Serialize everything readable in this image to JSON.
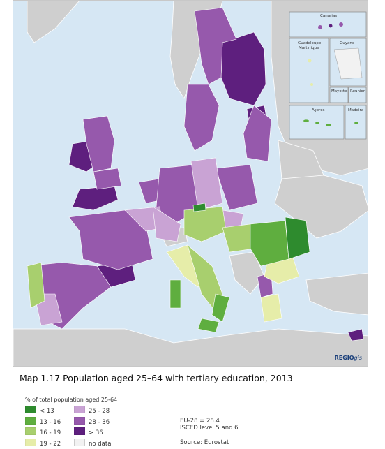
{
  "inset_labels": {
    "canarias": "Canarias",
    "guadeloupe": "Guadeloupe",
    "martinique": "Martinique",
    "guyane": "Guyane",
    "mayotte": "Mayotte",
    "reunion": "Réunion",
    "acores": "Açores",
    "madeira": "Madeira"
  },
  "credit": {
    "brand": "REGIO",
    "suffix": "gis"
  },
  "title": "Map 1.17 Population aged 25–64 with tertiary education, 2013",
  "legend": {
    "heading": "% of total population aged 25-64",
    "items": [
      {
        "label": "< 13",
        "color": "#2e8b2e"
      },
      {
        "label": "25 - 28",
        "color": "#c9a3d4"
      },
      {
        "label": "13 - 16",
        "color": "#5fae3f"
      },
      {
        "label": "28 - 36",
        "color": "#9659ac"
      },
      {
        "label": "16 - 19",
        "color": "#a8cf6e"
      },
      {
        "label": "> 36",
        "color": "#5e1f7e"
      },
      {
        "label": "19 - 22",
        "color": "#e6eda9"
      },
      {
        "label": "no data",
        "color": "#f2f2f2"
      }
    ]
  },
  "notes": {
    "eu_average": "EU-28 = 28.4",
    "isced": "ISCED level 5 and 6",
    "source": "Source: Eurostat"
  },
  "colors": {
    "sea": "#d6e7f4",
    "non_eu_land": "#cfcfcf",
    "border": "#ffffff"
  }
}
